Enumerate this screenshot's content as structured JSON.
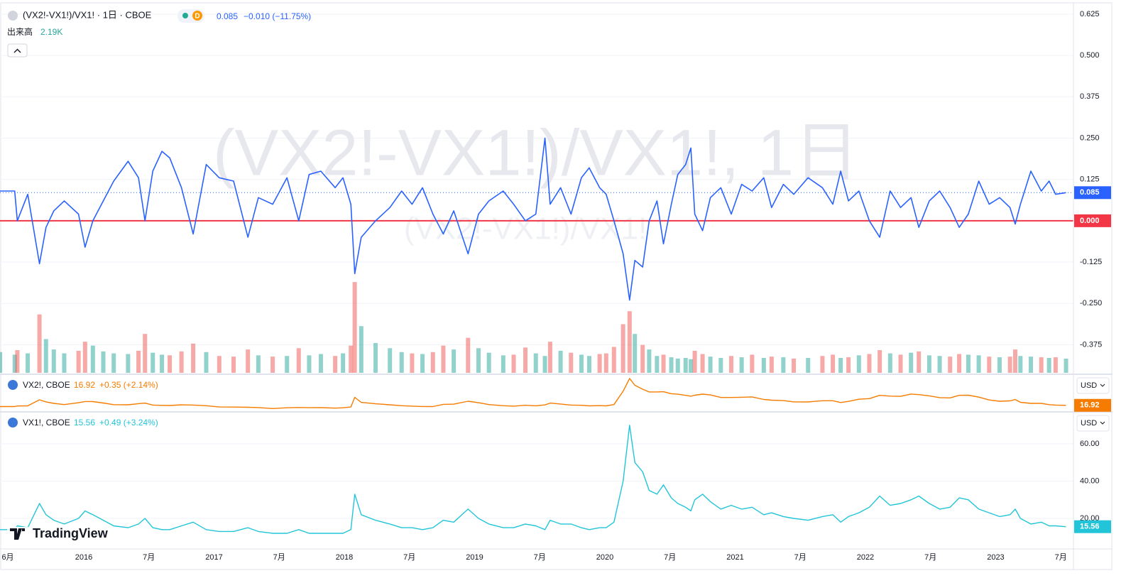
{
  "chart_data": [
    {
      "type": "line",
      "legend_title": "(VX2!-VX1!)/VX1! · 1日 · CBOE",
      "badge": "D",
      "last_value_label": "0.085",
      "change_label": "−0.010 (−11.75%)",
      "watermark": "(VX2!-VX1!)/VX1!, 1日",
      "watermark_small": "(VX2!-VX1!)/VX1!",
      "x": [
        2015.357,
        2015.47,
        2015.49,
        2015.57,
        2015.66,
        2015.71,
        2015.77,
        2015.85,
        2015.96,
        2016.01,
        2016.07,
        2016.15,
        2016.23,
        2016.34,
        2016.42,
        2016.47,
        2016.53,
        2016.6,
        2016.66,
        2016.75,
        2016.84,
        2016.94,
        2017.04,
        2017.15,
        2017.26,
        2017.34,
        2017.45,
        2017.56,
        2017.65,
        2017.73,
        2017.82,
        2017.93,
        2017.99,
        2018.05,
        2018.08,
        2018.13,
        2018.24,
        2018.35,
        2018.44,
        2018.52,
        2018.6,
        2018.68,
        2018.76,
        2018.84,
        2018.95,
        2019.03,
        2019.11,
        2019.22,
        2019.3,
        2019.39,
        2019.47,
        2019.54,
        2019.58,
        2019.66,
        2019.74,
        2019.82,
        2019.88,
        2019.96,
        2020.01,
        2020.07,
        2020.14,
        2020.19,
        2020.23,
        2020.29,
        2020.34,
        2020.4,
        2020.45,
        2020.51,
        2020.56,
        2020.62,
        2020.66,
        2020.69,
        2020.75,
        2020.81,
        2020.89,
        2020.97,
        2021.05,
        2021.13,
        2021.22,
        2021.28,
        2021.37,
        2021.45,
        2021.56,
        2021.67,
        2021.75,
        2021.81,
        2021.87,
        2021.95,
        2022.03,
        2022.11,
        2022.19,
        2022.27,
        2022.35,
        2022.41,
        2022.49,
        2022.57,
        2022.65,
        2022.72,
        2022.79,
        2022.87,
        2022.95,
        2023.03,
        2023.11,
        2023.15,
        2023.19,
        2023.27,
        2023.35,
        2023.41,
        2023.46,
        2023.54
      ],
      "series": [
        {
          "color": "#2962ff",
          "values": [
            0.09,
            0.09,
            0.0,
            0.08,
            -0.13,
            -0.02,
            0.03,
            0.06,
            0.02,
            -0.08,
            0.0,
            0.06,
            0.12,
            0.18,
            0.13,
            0.0,
            0.15,
            0.21,
            0.19,
            0.1,
            -0.04,
            0.17,
            0.13,
            0.12,
            -0.05,
            0.07,
            0.05,
            0.13,
            0.0,
            0.14,
            0.15,
            0.1,
            0.13,
            0.05,
            -0.16,
            -0.05,
            0.0,
            0.04,
            0.09,
            0.05,
            0.1,
            0.02,
            -0.04,
            0.03,
            -0.1,
            0.02,
            0.06,
            0.09,
            0.05,
            0.0,
            0.02,
            0.25,
            0.05,
            0.1,
            0.02,
            0.13,
            0.16,
            0.1,
            0.08,
            0.0,
            -0.1,
            -0.24,
            -0.12,
            -0.14,
            0.0,
            0.06,
            -0.07,
            0.05,
            0.14,
            0.17,
            0.22,
            0.02,
            -0.03,
            0.07,
            0.1,
            0.02,
            0.11,
            0.09,
            0.13,
            0.04,
            0.11,
            0.08,
            0.13,
            0.1,
            0.05,
            0.15,
            0.06,
            0.09,
            0.0,
            -0.05,
            0.09,
            0.04,
            0.07,
            -0.02,
            0.06,
            0.09,
            0.04,
            -0.02,
            0.02,
            0.12,
            0.05,
            0.07,
            0.04,
            -0.01,
            0.05,
            0.15,
            0.09,
            0.12,
            0.08,
            0.085
          ]
        }
      ],
      "ylim": [
        -0.46,
        0.657
      ],
      "yticks": [
        {
          "value": 0.625,
          "label": "0.625"
        },
        {
          "value": 0.5,
          "label": "0.500"
        },
        {
          "value": 0.375,
          "label": "0.375"
        },
        {
          "value": 0.25,
          "label": "0.250"
        },
        {
          "value": 0.125,
          "label": "0.125"
        },
        {
          "value": -0.125,
          "label": "-0.125"
        },
        {
          "value": -0.25,
          "label": "-0.250"
        },
        {
          "value": -0.375,
          "label": "-0.375"
        }
      ],
      "hline": {
        "value": 0,
        "label": "0.000",
        "color": "#f23645"
      },
      "grid": true,
      "volume": {
        "name": "出来高",
        "last_label": "2.19K",
        "up_color": "#26a69a",
        "down_color": "#ef5350",
        "ylim": [
          0,
          15000
        ],
        "values": [
          3200,
          2800,
          3500,
          3000,
          9000,
          5200,
          3600,
          3000,
          3400,
          4800,
          4200,
          3300,
          3000,
          2900,
          3400,
          6000,
          3100,
          2800,
          2700,
          3300,
          4500,
          3200,
          2600,
          2500,
          3600,
          2700,
          2500,
          2600,
          3800,
          2700,
          2900,
          2600,
          3000,
          4200,
          14000,
          7200,
          4600,
          3800,
          3200,
          3000,
          2900,
          3200,
          4200,
          3600,
          5400,
          3800,
          3100,
          2700,
          2800,
          3900,
          3000,
          2600,
          4800,
          3400,
          3100,
          2800,
          2600,
          2900,
          3000,
          4000,
          7500,
          9500,
          6000,
          4300,
          3600,
          2600,
          2800,
          2400,
          2200,
          2300,
          2100,
          3400,
          2900,
          2500,
          2300,
          2600,
          2400,
          2800,
          2300,
          2500,
          2400,
          2200,
          2300,
          2600,
          2800,
          2300,
          2400,
          2700,
          2900,
          3500,
          3000,
          2800,
          3100,
          3300,
          2700,
          2600,
          2500,
          2900,
          2800,
          2700,
          2500,
          2400,
          2500,
          3600,
          2600,
          2500,
          2400,
          2300,
          2400,
          2190
        ]
      }
    },
    {
      "type": "line",
      "legend_title": "VX2!, CBOE",
      "price_label": "16.92",
      "change_label": "+0.35 (+2.14%)",
      "currency": "USD",
      "series": [
        {
          "color": "#f57c00",
          "values": [
            15.3,
            15.3,
            16,
            16.2,
            24.4,
            21.6,
            19.6,
            18,
            20.4,
            22.1,
            22,
            20.1,
            17.9,
            17.7,
            19.2,
            20,
            17.3,
            16.9,
            16.7,
            17.6,
            17.3,
            16.4,
            14.7,
            14.6,
            14.3,
            13.9,
            12.6,
            13.6,
            14,
            13.7,
            13.8,
            13.2,
            13.6,
            14.7,
            27.7,
            20.9,
            19,
            17.7,
            16.4,
            15.8,
            15.4,
            15.3,
            18.2,
            18.5,
            22.5,
            20.4,
            18,
            16.4,
            15.8,
            17,
            16.3,
            17.5,
            20,
            18.7,
            17.3,
            17,
            16.2,
            16.5,
            16.2,
            18,
            36,
            53.2,
            44,
            38.7,
            35,
            35,
            35.3,
            32.6,
            31.9,
            30.4,
            29.3,
            30.6,
            32,
            31,
            27.5,
            27.5,
            27.8,
            28.3,
            24.9,
            23.9,
            23.3,
            21.6,
            21.5,
            23.1,
            23.1,
            20.7,
            22.3,
            25.1,
            26,
            30.4,
            29.4,
            29.1,
            32.1,
            31.4,
            29.7,
            27.3,
            27,
            30.4,
            30.6,
            28,
            24.2,
            22.5,
            22.9,
            24.8,
            21,
            19.6,
            19.6,
            17.9,
            17.3,
            16.92
          ]
        }
      ],
      "ylim": [
        10,
        56
      ]
    },
    {
      "type": "line",
      "legend_title": "VX1!, CBOE",
      "price_label": "15.56",
      "change_label": "+0.49 (+3.24%)",
      "currency": "USD",
      "series": [
        {
          "color": "#22c5d8",
          "values": [
            14,
            14,
            16,
            15,
            28,
            22,
            19,
            17,
            20,
            24,
            22,
            19,
            16,
            15,
            17,
            20,
            15,
            14,
            14,
            16,
            18,
            14,
            13,
            13,
            15,
            13,
            12,
            12,
            14,
            12,
            12,
            12,
            12,
            14,
            33,
            22,
            19,
            17,
            15,
            15,
            14,
            15,
            19,
            18,
            25,
            20,
            17,
            15,
            15,
            17,
            16,
            14,
            19,
            17,
            17,
            15,
            14,
            15,
            15,
            18,
            40,
            70,
            50,
            45,
            35,
            33,
            38,
            31,
            28,
            26,
            24,
            30,
            33,
            29,
            25,
            27,
            25,
            26,
            22,
            23,
            21,
            20,
            19,
            21,
            22,
            18,
            21,
            23,
            26,
            32,
            27,
            28,
            30,
            32,
            28,
            25,
            26,
            31,
            30,
            25,
            23,
            21,
            22,
            25,
            20,
            17,
            18,
            16,
            16,
            15.56
          ]
        }
      ],
      "ylim": [
        4,
        76.4
      ],
      "yticks": [
        {
          "value": 60,
          "label": "60.00"
        },
        {
          "value": 40,
          "label": "40.00"
        },
        {
          "value": 20,
          "label": "20.00"
        }
      ],
      "xlim": [
        2015.357,
        2023.597
      ],
      "xticks": [
        {
          "value": 2015.417,
          "label": "6月"
        },
        2016,
        {
          "value": 2016.5,
          "label": "7月"
        },
        2017,
        {
          "value": 2017.5,
          "label": "7月"
        },
        2018,
        {
          "value": 2018.5,
          "label": "7月"
        },
        2019,
        {
          "value": 2019.5,
          "label": "7月"
        },
        2020,
        {
          "value": 2020.5,
          "label": "7月"
        },
        2021,
        {
          "value": 2021.5,
          "label": "7月"
        },
        2022,
        {
          "value": 2022.5,
          "label": "7月"
        },
        2023,
        {
          "value": 2023.5,
          "label": "7月"
        }
      ]
    }
  ],
  "branding": "TradingView"
}
